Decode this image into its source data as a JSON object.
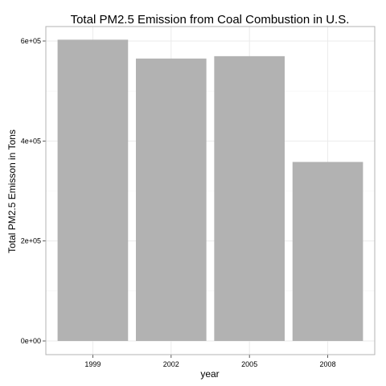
{
  "chart_data": {
    "type": "bar",
    "title": "Total PM2.5 Emission from Coal Combustion in U.S.",
    "xlabel": "year",
    "ylabel": "Total PM2.5 Emisson in Tons",
    "categories": [
      "1999",
      "2002",
      "2005",
      "2008"
    ],
    "values": [
      602624,
      564940,
      569655,
      358084
    ],
    "ylim": [
      0,
      625000
    ],
    "yticks": [
      0,
      200000,
      400000,
      600000
    ],
    "ytick_labels": [
      "0e+00",
      "2e+05",
      "4e+05",
      "6e+05"
    ],
    "grid": true,
    "legend": "none",
    "bar_color": "#b2b2b2",
    "grid_color": "#ebebeb",
    "panel_border_color": "#b3b3b3"
  }
}
